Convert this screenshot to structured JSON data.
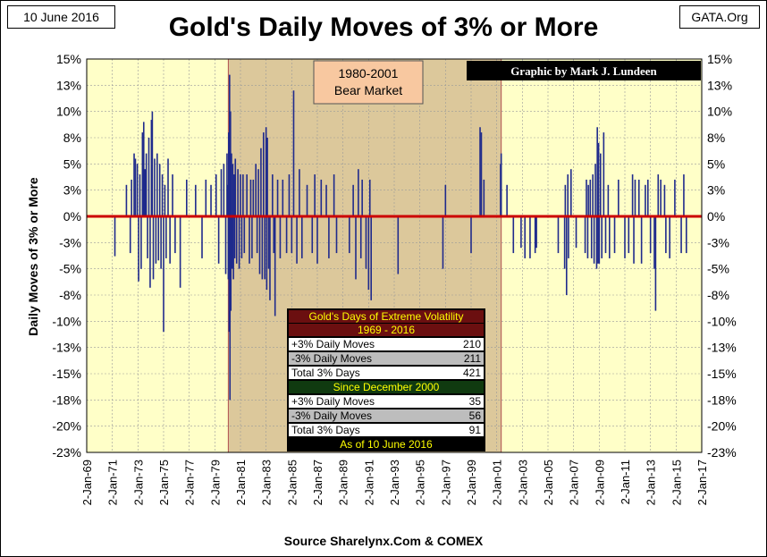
{
  "header": {
    "date_label": "10 June 2016",
    "site_label": "GATA.Org",
    "title": "Gold's Daily Moves of 3% or More",
    "source": "Source Sharelynx.Com & COMEX"
  },
  "colors": {
    "plot_bg": "#ffffc8",
    "bear_shade": "#dcc89b",
    "bar": "#1f2a8c",
    "zero_line": "#cc0000",
    "bear_label_bg": "#f8c8a0",
    "credit_bg": "#000000",
    "table_header_bg": "#6b0f10",
    "table_section_bg": "#103a10",
    "table_gray_row": "#bdbdbd"
  },
  "annotations": {
    "bear_market_label": [
      "1980-2001",
      "Bear Market"
    ],
    "credit": "Graphic by Mark J. Lundeen"
  },
  "stats_table": {
    "title": "Gold's Days of Extreme Volatility",
    "period1": "1969 - 2016",
    "rows1": [
      {
        "label": "+3% Daily Moves",
        "value": "210"
      },
      {
        "label": "-3% Daily Moves",
        "value": "211"
      },
      {
        "label": "Total 3% Days",
        "value": "421"
      }
    ],
    "period2": "Since December 2000",
    "rows2": [
      {
        "label": "+3% Daily Moves",
        "value": "35"
      },
      {
        "label": "-3% Daily Moves",
        "value": "56"
      },
      {
        "label": "Total 3% Days",
        "value": "91"
      }
    ],
    "footer": "As of 10 June 2016"
  },
  "chart_data": {
    "type": "bar",
    "ylabel": "Daily Moves of 3% or More",
    "ylim": [
      -0.225,
      0.15
    ],
    "y_tick_values": [
      0.15,
      0.125,
      0.1,
      0.075,
      0.05,
      0.025,
      0,
      -0.025,
      -0.05,
      -0.075,
      -0.1,
      -0.125,
      -0.15,
      -0.175,
      -0.2,
      -0.225
    ],
    "y_tick_labels": [
      "15%",
      "13%",
      "10%",
      "8%",
      "5%",
      "3%",
      "0%",
      "-3%",
      "-5%",
      "-8%",
      "-10%",
      "-13%",
      "-15%",
      "-18%",
      "-20%",
      "-23%"
    ],
    "x_tick_labels": [
      "2-Jan-69",
      "2-Jan-71",
      "2-Jan-73",
      "2-Jan-75",
      "2-Jan-77",
      "2-Jan-79",
      "2-Jan-81",
      "2-Jan-83",
      "2-Jan-85",
      "2-Jan-87",
      "2-Jan-89",
      "2-Jan-91",
      "2-Jan-93",
      "2-Jan-95",
      "2-Jan-97",
      "2-Jan-99",
      "2-Jan-01",
      "2-Jan-03",
      "2-Jan-05",
      "2-Jan-07",
      "2-Jan-09",
      "2-Jan-11",
      "2-Jan-13",
      "2-Jan-15",
      "2-Jan-17"
    ],
    "xlim": [
      1969.0,
      2017.0
    ],
    "bear_market_span": [
      1980.05,
      2001.35
    ],
    "zero_line": 0,
    "grid": true,
    "series": [
      {
        "points": [
          [
            1971.2,
            -0.038
          ],
          [
            1972.1,
            0.03
          ],
          [
            1972.4,
            -0.035
          ],
          [
            1972.5,
            0.035
          ],
          [
            1972.7,
            0.06
          ],
          [
            1972.8,
            0.055
          ],
          [
            1972.95,
            0.05
          ],
          [
            1973.05,
            -0.062
          ],
          [
            1973.15,
            0.04
          ],
          [
            1973.25,
            -0.05
          ],
          [
            1973.35,
            0.08
          ],
          [
            1973.45,
            0.09
          ],
          [
            1973.55,
            0.045
          ],
          [
            1973.65,
            0.06
          ],
          [
            1973.75,
            -0.04
          ],
          [
            1973.85,
            0.075
          ],
          [
            1973.95,
            -0.068
          ],
          [
            1974.05,
            0.092
          ],
          [
            1974.12,
            0.1
          ],
          [
            1974.2,
            -0.06
          ],
          [
            1974.3,
            0.055
          ],
          [
            1974.4,
            -0.045
          ],
          [
            1974.5,
            0.06
          ],
          [
            1974.6,
            -0.042
          ],
          [
            1974.7,
            0.05
          ],
          [
            1974.8,
            -0.05
          ],
          [
            1974.9,
            0.04
          ],
          [
            1975.0,
            -0.11
          ],
          [
            1975.1,
            0.03
          ],
          [
            1975.2,
            -0.04
          ],
          [
            1975.35,
            0.055
          ],
          [
            1975.5,
            -0.045
          ],
          [
            1975.7,
            0.04
          ],
          [
            1975.9,
            -0.035
          ],
          [
            1976.3,
            -0.068
          ],
          [
            1976.8,
            0.035
          ],
          [
            1977.5,
            0.03
          ],
          [
            1978.0,
            -0.04
          ],
          [
            1978.3,
            0.035
          ],
          [
            1978.7,
            0.03
          ],
          [
            1979.1,
            0.04
          ],
          [
            1979.3,
            -0.045
          ],
          [
            1979.5,
            0.045
          ],
          [
            1979.7,
            0.05
          ],
          [
            1979.85,
            -0.055
          ],
          [
            1979.95,
            0.06
          ],
          [
            1980.02,
            0.03
          ],
          [
            1980.05,
            -0.06
          ],
          [
            1980.08,
            0.08
          ],
          [
            1980.12,
            -0.11
          ],
          [
            1980.15,
            0.135
          ],
          [
            1980.18,
            -0.175
          ],
          [
            1980.22,
            0.1
          ],
          [
            1980.25,
            -0.09
          ],
          [
            1980.3,
            0.06
          ],
          [
            1980.35,
            -0.05
          ],
          [
            1980.4,
            0.05
          ],
          [
            1980.45,
            -0.06
          ],
          [
            1980.5,
            0.04
          ],
          [
            1980.55,
            -0.04
          ],
          [
            1980.6,
            0.055
          ],
          [
            1980.7,
            -0.045
          ],
          [
            1980.8,
            0.045
          ],
          [
            1980.9,
            -0.05
          ],
          [
            1981.0,
            0.04
          ],
          [
            1981.1,
            -0.04
          ],
          [
            1981.2,
            0.04
          ],
          [
            1981.3,
            -0.035
          ],
          [
            1981.5,
            0.04
          ],
          [
            1981.7,
            -0.045
          ],
          [
            1981.8,
            0.035
          ],
          [
            1981.9,
            -0.04
          ],
          [
            1982.0,
            0.035
          ],
          [
            1982.2,
            0.05
          ],
          [
            1982.3,
            -0.035
          ],
          [
            1982.4,
            0.045
          ],
          [
            1982.5,
            -0.055
          ],
          [
            1982.6,
            0.065
          ],
          [
            1982.7,
            -0.06
          ],
          [
            1982.8,
            0.08
          ],
          [
            1982.9,
            -0.06
          ],
          [
            1983.0,
            0.085
          ],
          [
            1983.05,
            -0.07
          ],
          [
            1983.1,
            0.075
          ],
          [
            1983.2,
            -0.05
          ],
          [
            1983.3,
            -0.08
          ],
          [
            1983.5,
            0.04
          ],
          [
            1983.6,
            -0.035
          ],
          [
            1983.7,
            -0.095
          ],
          [
            1983.9,
            0.035
          ],
          [
            1984.1,
            -0.04
          ],
          [
            1984.3,
            0.035
          ],
          [
            1984.6,
            -0.035
          ],
          [
            1984.8,
            0.04
          ],
          [
            1985.0,
            -0.035
          ],
          [
            1985.15,
            0.12
          ],
          [
            1985.4,
            -0.045
          ],
          [
            1985.6,
            0.045
          ],
          [
            1985.8,
            -0.04
          ],
          [
            1986.2,
            0.03
          ],
          [
            1986.6,
            -0.035
          ],
          [
            1986.8,
            0.04
          ],
          [
            1987.0,
            -0.045
          ],
          [
            1987.3,
            0.035
          ],
          [
            1987.7,
            0.03
          ],
          [
            1987.9,
            -0.04
          ],
          [
            1988.3,
            0.04
          ],
          [
            1988.5,
            -0.035
          ],
          [
            1989.5,
            -0.035
          ],
          [
            1989.8,
            0.03
          ],
          [
            1990.0,
            -0.06
          ],
          [
            1990.2,
            0.045
          ],
          [
            1990.4,
            -0.04
          ],
          [
            1990.5,
            0.035
          ],
          [
            1990.8,
            -0.05
          ],
          [
            1991.0,
            -0.07
          ],
          [
            1991.1,
            0.035
          ],
          [
            1991.2,
            -0.08
          ],
          [
            1993.3,
            -0.055
          ],
          [
            1996.8,
            -0.05
          ],
          [
            1997.0,
            0.03
          ],
          [
            1999.0,
            -0.035
          ],
          [
            1999.7,
            0.085
          ],
          [
            1999.8,
            0.08
          ],
          [
            2000.0,
            0.035
          ],
          [
            2001.3,
            0.05
          ],
          [
            2001.35,
            0.06
          ],
          [
            2001.8,
            0.03
          ],
          [
            2002.3,
            -0.035
          ],
          [
            2002.9,
            -0.03
          ],
          [
            2003.2,
            -0.04
          ],
          [
            2003.6,
            -0.04
          ],
          [
            2004.0,
            -0.035
          ],
          [
            2004.1,
            -0.03
          ],
          [
            2005.8,
            -0.035
          ],
          [
            2006.3,
            -0.05
          ],
          [
            2006.35,
            0.03
          ],
          [
            2006.45,
            -0.075
          ],
          [
            2006.55,
            0.04
          ],
          [
            2006.6,
            -0.04
          ],
          [
            2006.8,
            0.045
          ],
          [
            2007.2,
            -0.03
          ],
          [
            2007.9,
            -0.035
          ],
          [
            2008.0,
            0.035
          ],
          [
            2008.1,
            -0.04
          ],
          [
            2008.15,
            0.03
          ],
          [
            2008.3,
            0.035
          ],
          [
            2008.4,
            -0.04
          ],
          [
            2008.5,
            0.04
          ],
          [
            2008.6,
            -0.045
          ],
          [
            2008.7,
            0.05
          ],
          [
            2008.8,
            -0.05
          ],
          [
            2008.85,
            0.085
          ],
          [
            2008.9,
            -0.045
          ],
          [
            2008.95,
            0.07
          ],
          [
            2009.0,
            -0.045
          ],
          [
            2009.1,
            0.06
          ],
          [
            2009.2,
            -0.04
          ],
          [
            2009.35,
            0.08
          ],
          [
            2009.5,
            -0.035
          ],
          [
            2009.7,
            0.03
          ],
          [
            2009.8,
            -0.04
          ],
          [
            2010.2,
            -0.035
          ],
          [
            2010.5,
            0.035
          ],
          [
            2011.0,
            -0.04
          ],
          [
            2011.3,
            -0.035
          ],
          [
            2011.6,
            0.04
          ],
          [
            2011.7,
            -0.045
          ],
          [
            2011.8,
            0.035
          ],
          [
            2012.1,
            0.035
          ],
          [
            2012.3,
            -0.045
          ],
          [
            2012.6,
            0.03
          ],
          [
            2012.8,
            0.035
          ],
          [
            2013.0,
            -0.035
          ],
          [
            2013.3,
            -0.05
          ],
          [
            2013.4,
            -0.09
          ],
          [
            2013.6,
            0.04
          ],
          [
            2013.8,
            0.035
          ],
          [
            2014.1,
            0.03
          ],
          [
            2014.2,
            -0.035
          ],
          [
            2014.5,
            -0.04
          ],
          [
            2014.9,
            0.035
          ],
          [
            2015.4,
            -0.035
          ],
          [
            2015.6,
            0.04
          ],
          [
            2015.8,
            -0.035
          ]
        ]
      }
    ]
  }
}
